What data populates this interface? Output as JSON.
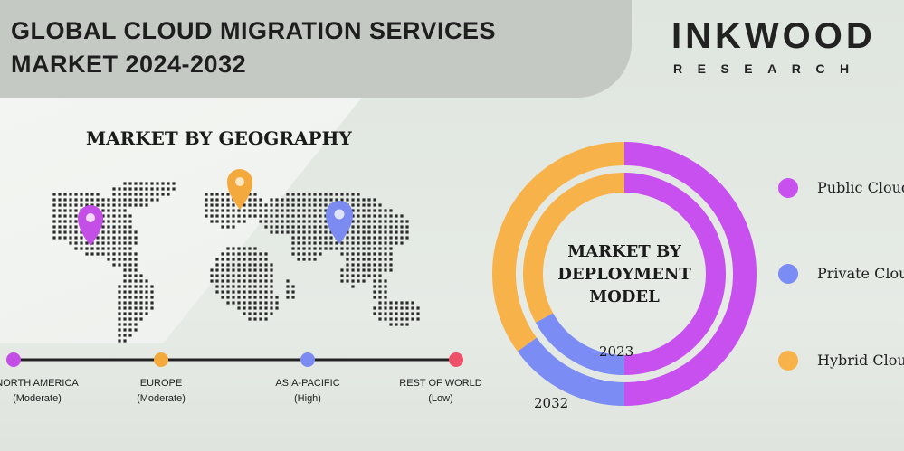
{
  "title": {
    "line1": "GLOBAL CLOUD MIGRATION SERVICES",
    "line2": "MARKET 2024-2032"
  },
  "brand": {
    "name": "INKWOOD",
    "sub": "RESEARCH"
  },
  "geography": {
    "title": "MARKET BY GEOGRAPHY",
    "regions": [
      {
        "name": "NORTH AMERICA",
        "level": "(Moderate)",
        "color": "#c34fe6"
      },
      {
        "name": "EUROPE",
        "level": "(Moderate)",
        "color": "#f4a93d"
      },
      {
        "name": "ASIA-PACIFIC",
        "level": "(High)",
        "color": "#7b8bf2"
      },
      {
        "name": "REST OF WORLD",
        "level": "(Low)",
        "color": "#ee4f69"
      }
    ]
  },
  "chart_data": {
    "type": "pie",
    "title": "MARKET BY DEPLOYMENT MODEL",
    "categories": [
      "Public Cloud",
      "Private Cloud",
      "Hybrid Cloud"
    ],
    "colors": [
      "#c750ef",
      "#7b8cf4",
      "#f8b24a"
    ],
    "series": [
      {
        "name": "2023",
        "values": [
          50,
          17,
          33
        ]
      },
      {
        "name": "2032",
        "values": [
          50,
          15,
          35
        ]
      }
    ]
  }
}
